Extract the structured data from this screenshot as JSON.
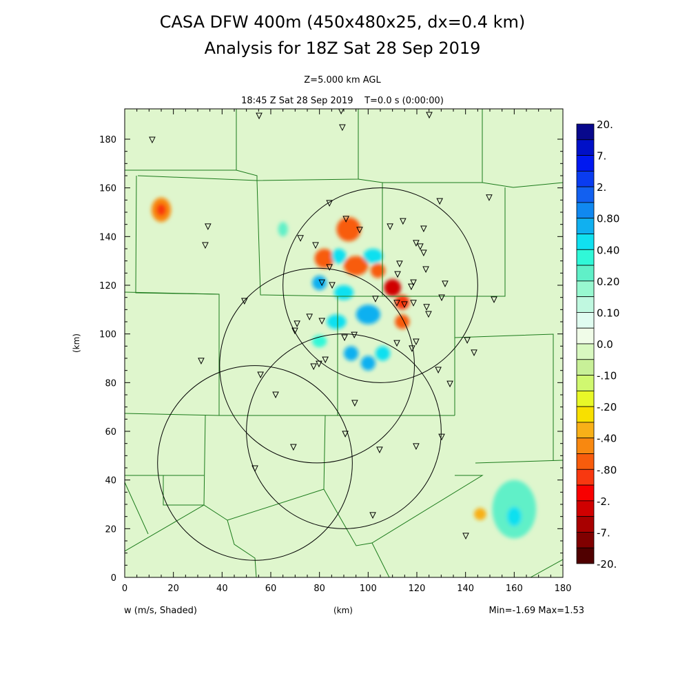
{
  "chart_data": {
    "type": "heatmap",
    "title": "CASA DFW 400m (450x480x25, dx=0.4 km)",
    "subtitle": "Analysis for 18Z Sat 28 Sep 2019",
    "level_label": "Z=5.000 km AGL",
    "time_label": "18:45 Z Sat 28 Sep 2019    T=0.0 s (0:00:00)",
    "xlabel": "(km)",
    "ylabel": "(km)",
    "field_label": "w (m/s, Shaded)",
    "stats_label": "Min=-1.69 Max=1.53",
    "xlim": [
      0,
      180
    ],
    "ylim": [
      0,
      192
    ],
    "xticks": [
      "0",
      "20",
      "40",
      "60",
      "80",
      "100",
      "120",
      "140",
      "160",
      "180"
    ],
    "yticks": [
      "0",
      "20",
      "40",
      "60",
      "80",
      "100",
      "120",
      "140",
      "160",
      "180"
    ],
    "colorbar": {
      "labels": [
        "20.",
        "7.",
        "2.",
        "0.80",
        "0.40",
        "0.20",
        "0.10",
        "0.0",
        "-.10",
        "-.20",
        "-.40",
        "-.80",
        "-2.",
        "-7.",
        "-20."
      ],
      "colors": [
        "#08088c",
        "#0010c8",
        "#0018f0",
        "#0a3cf0",
        "#1260f0",
        "#1088f0",
        "#10b0f0",
        "#10e0f0",
        "#30f8d8",
        "#60f0c8",
        "#98f8d0",
        "#c0f8e0",
        "#e0fcf0",
        "#f0fce8",
        "#d8f8c0",
        "#c8f098",
        "#d0f870",
        "#e8f828",
        "#f8e000",
        "#f8b018",
        "#f88810",
        "#f85c0c",
        "#f83810",
        "#f80000",
        "#d00000",
        "#a80000",
        "#800000",
        "#500000"
      ]
    },
    "radar_circles_km": [
      {
        "cx": 105,
        "cy": 120,
        "r": 40
      },
      {
        "cx": 79,
        "cy": 87,
        "r": 40
      },
      {
        "cx": 90,
        "cy": 60,
        "r": 40
      },
      {
        "cx": 53.5,
        "cy": 47,
        "r": 40
      }
    ],
    "stations_km": [
      [
        11.3,
        179.7
      ],
      [
        55.2,
        189.6
      ],
      [
        88.9,
        191.6
      ],
      [
        89.4,
        184.8
      ],
      [
        125.1,
        189.9
      ],
      [
        34.2,
        144.1
      ],
      [
        33.1,
        136.4
      ],
      [
        84.1,
        153.7
      ],
      [
        129.4,
        154.5
      ],
      [
        149.7,
        156
      ],
      [
        90.9,
        147.2
      ],
      [
        72.2,
        139.3
      ],
      [
        78.4,
        136.4
      ],
      [
        96.5,
        142.7
      ],
      [
        109,
        144.1
      ],
      [
        114.3,
        146.3
      ],
      [
        122.8,
        143.2
      ],
      [
        119.7,
        137.3
      ],
      [
        121.4,
        135.9
      ],
      [
        112.9,
        128.8
      ],
      [
        122.8,
        133.3
      ],
      [
        84.1,
        127.4
      ],
      [
        123.7,
        126.5
      ],
      [
        131.6,
        120.6
      ],
      [
        112.1,
        124.5
      ],
      [
        118.6,
        121.1
      ],
      [
        117.7,
        119.4
      ],
      [
        81,
        121.1
      ],
      [
        85.2,
        120
      ],
      [
        103,
        114.4
      ],
      [
        111.8,
        112.7
      ],
      [
        114.9,
        112.1
      ],
      [
        118.6,
        112.7
      ],
      [
        124,
        111
      ],
      [
        130.2,
        114.9
      ],
      [
        124.8,
        108.1
      ],
      [
        151.7,
        114.1
      ],
      [
        49.2,
        113.5
      ],
      [
        75.9,
        107
      ],
      [
        81,
        105.3
      ],
      [
        70.8,
        104.2
      ],
      [
        69.9,
        101.3
      ],
      [
        90.3,
        98.5
      ],
      [
        94.3,
        99.6
      ],
      [
        119.7,
        96.8
      ],
      [
        111.8,
        96.2
      ],
      [
        118,
        94
      ],
      [
        140.7,
        97.4
      ],
      [
        143.5,
        92.3
      ],
      [
        31.4,
        88.9
      ],
      [
        128.8,
        85.2
      ],
      [
        133.6,
        79.5
      ],
      [
        82.4,
        89.4
      ],
      [
        79.8,
        87.7
      ],
      [
        77.6,
        86.6
      ],
      [
        55.8,
        83.2
      ],
      [
        62,
        75
      ],
      [
        94.5,
        71.6
      ],
      [
        90.6,
        58.9
      ],
      [
        130.2,
        57.7
      ],
      [
        69.3,
        53.5
      ],
      [
        104.7,
        52.4
      ],
      [
        119.7,
        53.8
      ],
      [
        53.5,
        44.7
      ],
      [
        101.9,
        25.5
      ],
      [
        140.1,
        17
      ]
    ],
    "w_features_km": [
      {
        "x": 15,
        "y": 151,
        "rx": 4,
        "ry": 5,
        "w": -0.4
      },
      {
        "x": 15,
        "y": 151,
        "rx": 2,
        "ry": 2.5,
        "w": -0.8
      },
      {
        "x": 92,
        "y": 143,
        "rx": 5,
        "ry": 5,
        "w": -0.6
      },
      {
        "x": 82,
        "y": 131,
        "rx": 4,
        "ry": 4,
        "w": -0.6
      },
      {
        "x": 95,
        "y": 128,
        "rx": 5,
        "ry": 4,
        "w": -0.6
      },
      {
        "x": 104,
        "y": 126,
        "rx": 3,
        "ry": 3,
        "w": -0.6
      },
      {
        "x": 110,
        "y": 119,
        "rx": 3.5,
        "ry": 3.5,
        "w": -2
      },
      {
        "x": 114,
        "y": 113,
        "rx": 3,
        "ry": 3,
        "w": -0.8
      },
      {
        "x": 114,
        "y": 105,
        "rx": 3,
        "ry": 3,
        "w": -0.6
      },
      {
        "x": 102,
        "y": 132,
        "rx": 4,
        "ry": 3,
        "w": 0.6
      },
      {
        "x": 88,
        "y": 132,
        "rx": 3,
        "ry": 3,
        "w": 0.6
      },
      {
        "x": 80,
        "y": 121,
        "rx": 3,
        "ry": 3,
        "w": 0.8
      },
      {
        "x": 90,
        "y": 117,
        "rx": 4,
        "ry": 3,
        "w": 0.6
      },
      {
        "x": 100,
        "y": 108,
        "rx": 5,
        "ry": 4,
        "w": 0.8
      },
      {
        "x": 87,
        "y": 105,
        "rx": 4,
        "ry": 3,
        "w": 0.6
      },
      {
        "x": 93,
        "y": 92,
        "rx": 3,
        "ry": 3,
        "w": 0.8
      },
      {
        "x": 100,
        "y": 88,
        "rx": 3,
        "ry": 3,
        "w": 0.8
      },
      {
        "x": 106,
        "y": 92,
        "rx": 3,
        "ry": 3,
        "w": 0.6
      },
      {
        "x": 80,
        "y": 97,
        "rx": 3,
        "ry": 2.5,
        "w": 0.4
      },
      {
        "x": 65,
        "y": 143,
        "rx": 2,
        "ry": 3,
        "w": 0.3
      },
      {
        "x": 160,
        "y": 28,
        "rx": 9,
        "ry": 12,
        "w": 0.3
      },
      {
        "x": 160,
        "y": 25,
        "rx": 3,
        "ry": 4,
        "w": 0.6
      },
      {
        "x": 146,
        "y": 26,
        "rx": 2.5,
        "ry": 2.5,
        "w": -0.3
      }
    ]
  }
}
